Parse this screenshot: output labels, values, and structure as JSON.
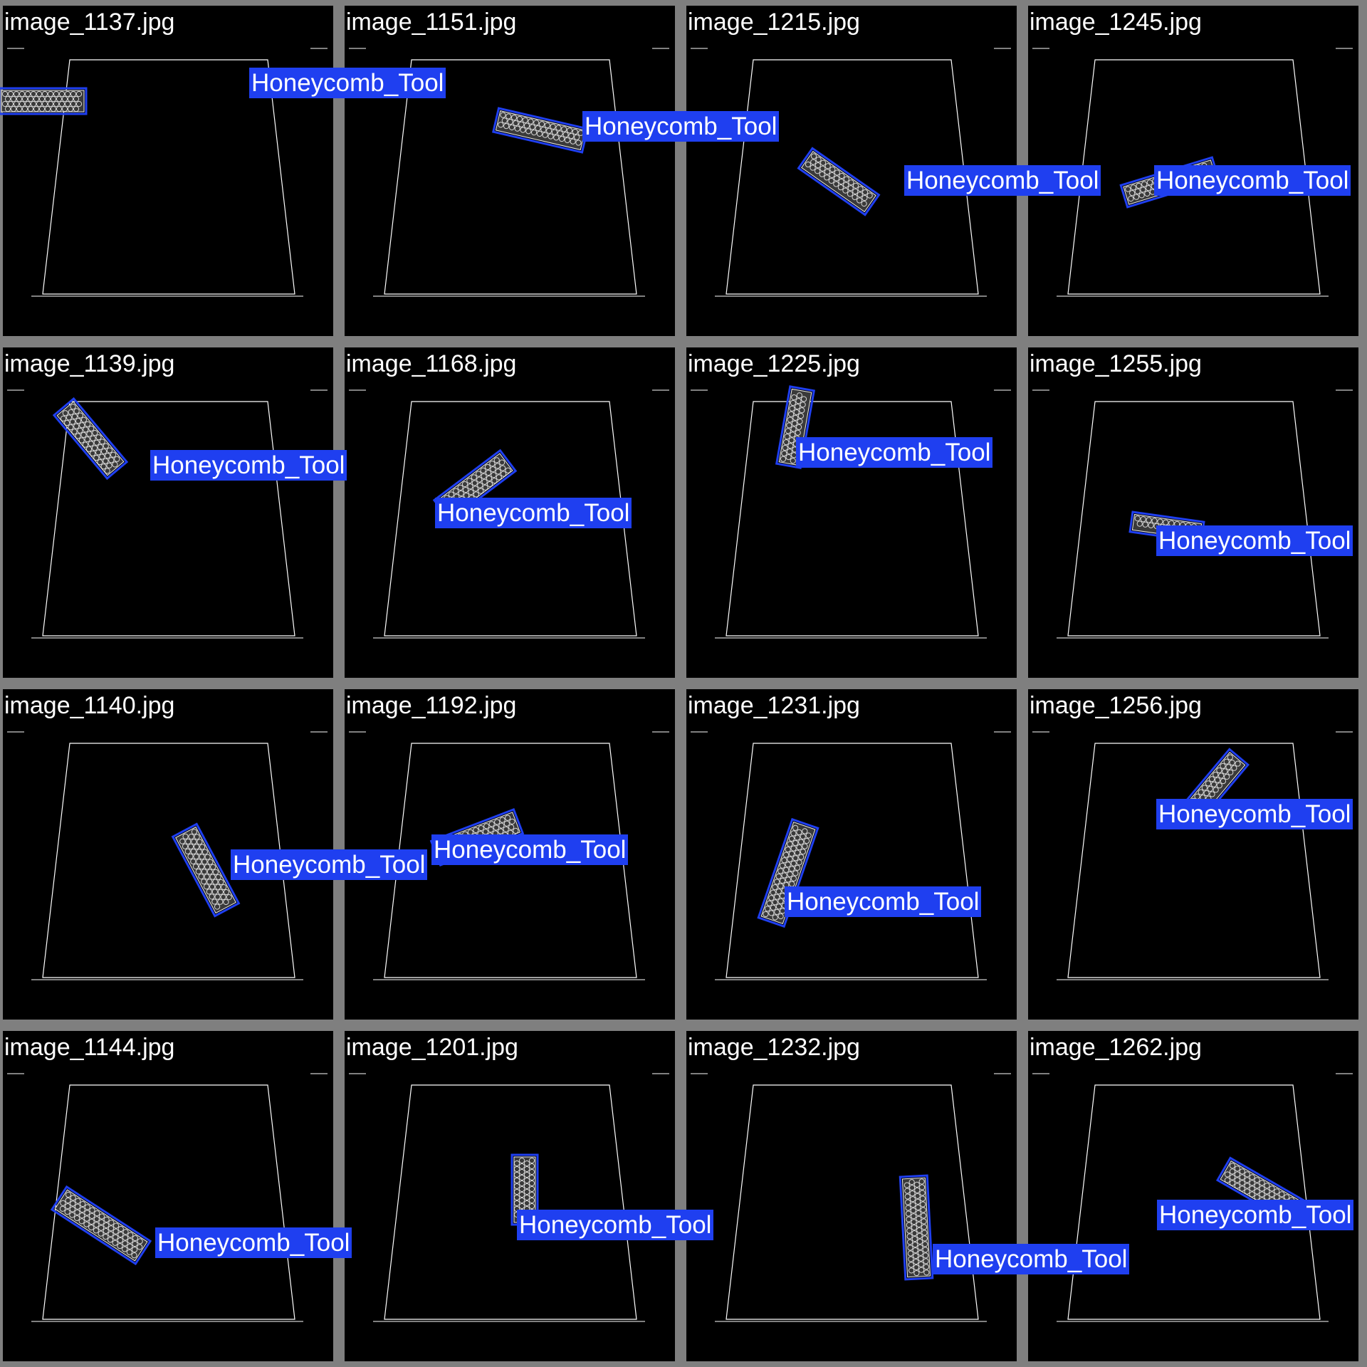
{
  "grid": {
    "columns": 4,
    "background": "#7f7f7f",
    "tile_background": "#000000"
  },
  "colors": {
    "detection_box": "#1f3ff0",
    "label_background": "#1f3ff0",
    "label_text": "#ffffff",
    "workspace_outline": "#ffffff"
  },
  "tiles": [
    {
      "filename": "image_1137.jpg",
      "label": "Honeycomb_Tool"
    },
    {
      "filename": "image_1151.jpg",
      "label": "Honeycomb_Tool"
    },
    {
      "filename": "image_1215.jpg",
      "label": "Honeycomb_Tool"
    },
    {
      "filename": "image_1245.jpg",
      "label": "Honeycomb_Tool"
    },
    {
      "filename": "image_1139.jpg",
      "label": "Honeycomb_Tool"
    },
    {
      "filename": "image_1168.jpg",
      "label": "Honeycomb_Tool"
    },
    {
      "filename": "image_1225.jpg",
      "label": "Honeycomb_Tool"
    },
    {
      "filename": "image_1255.jpg",
      "label": "Honeycomb_Tool"
    },
    {
      "filename": "image_1140.jpg",
      "label": "Honeycomb_Tool"
    },
    {
      "filename": "image_1192.jpg",
      "label": "Honeycomb_Tool"
    },
    {
      "filename": "image_1231.jpg",
      "label": "Honeycomb_Tool"
    },
    {
      "filename": "image_1256.jpg",
      "label": "Honeycomb_Tool"
    },
    {
      "filename": "image_1144.jpg",
      "label": "Honeycomb_Tool"
    },
    {
      "filename": "image_1201.jpg",
      "label": "Honeycomb_Tool"
    },
    {
      "filename": "image_1232.jpg",
      "label": "Honeycomb_Tool"
    },
    {
      "filename": "image_1262.jpg",
      "label": "Honeycomb_Tool"
    }
  ]
}
